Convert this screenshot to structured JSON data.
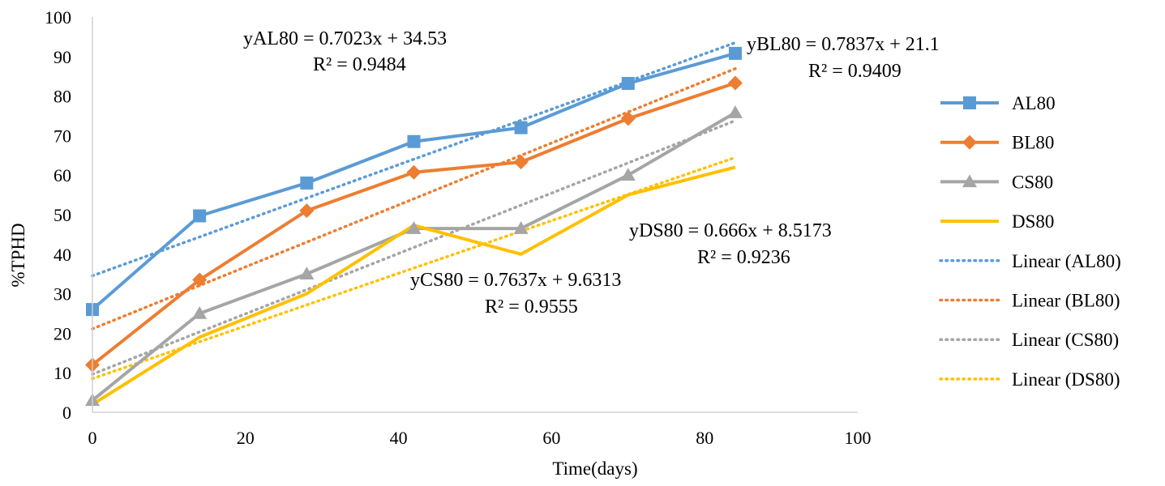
{
  "chart_data": {
    "type": "line",
    "xlabel": "Time(days)",
    "ylabel": "%TPHD",
    "xlim": [
      0,
      100
    ],
    "ylim": [
      0,
      100
    ],
    "xticks": [
      0,
      20,
      40,
      60,
      80,
      100
    ],
    "yticks": [
      0,
      10,
      20,
      30,
      40,
      50,
      60,
      70,
      80,
      90,
      100
    ],
    "grid": false,
    "legend_position": "right",
    "x": [
      0,
      14,
      28,
      42,
      56,
      70,
      84
    ],
    "series": [
      {
        "name": "AL80",
        "values": [
          26,
          49.7,
          58,
          68.5,
          72,
          83.2,
          90.8
        ],
        "color": "#5b9bd5",
        "marker": "square"
      },
      {
        "name": "BL80",
        "values": [
          12,
          33.5,
          51,
          60.7,
          63.3,
          74.3,
          83.3
        ],
        "color": "#ed7d31",
        "marker": "diamond"
      },
      {
        "name": "CS80",
        "values": [
          3,
          25,
          35,
          46.5,
          46.5,
          60,
          75.8
        ],
        "color": "#a5a5a5",
        "marker": "triangle"
      },
      {
        "name": "DS80",
        "values": [
          2,
          19,
          30,
          47.3,
          40,
          55,
          62
        ],
        "color": "#ffc000",
        "marker": "none"
      }
    ],
    "trendlines": [
      {
        "name": "Linear (AL80)",
        "slope": 0.7023,
        "intercept": 34.53,
        "x_range": [
          0,
          84
        ],
        "color": "#5b9bd5"
      },
      {
        "name": "Linear (BL80)",
        "slope": 0.7837,
        "intercept": 21.1,
        "x_range": [
          0,
          84
        ],
        "color": "#ed7d31"
      },
      {
        "name": "Linear (CS80)",
        "slope": 0.7637,
        "intercept": 9.6313,
        "x_range": [
          0,
          84
        ],
        "color": "#a5a5a5"
      },
      {
        "name": "Linear (DS80)",
        "slope": 0.666,
        "intercept": 8.5173,
        "x_range": [
          0,
          84
        ],
        "color": "#ffc000"
      }
    ],
    "annotations": [
      {
        "equation": "yAL80 = 0.7023x + 34.53",
        "r2": "R² = 0.9484"
      },
      {
        "equation": "yBL80 = 0.7837x + 21.1",
        "r2": "R² = 0.9409"
      },
      {
        "equation": "yCS80 = 0.7637x + 9.6313",
        "r2": "R² = 0.9555"
      },
      {
        "equation": "yDS80 = 0.666x + 8.5173",
        "r2": "R² = 0.9236"
      }
    ]
  }
}
